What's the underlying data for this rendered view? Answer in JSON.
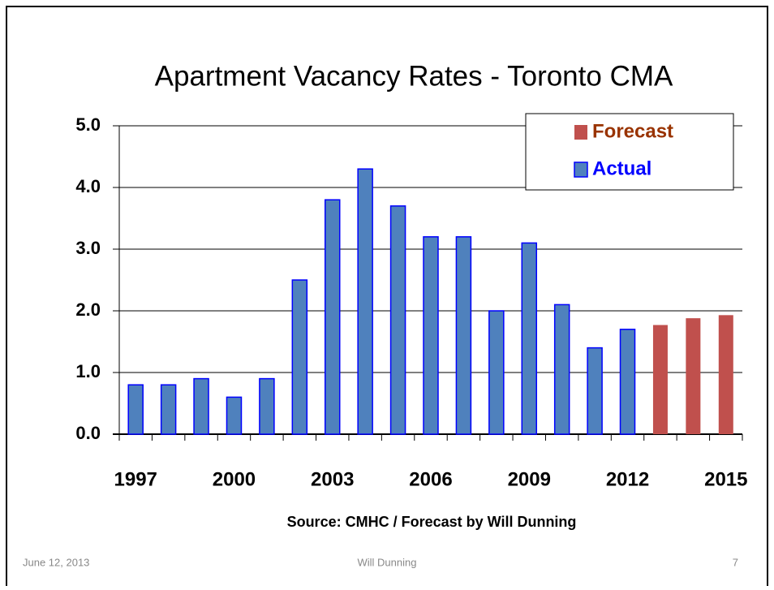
{
  "chart_data": {
    "type": "bar",
    "title": "Apartment Vacancy Rates - Toronto CMA",
    "source": "Source:  CMHC / Forecast by Will Dunning",
    "categories": [
      "1997",
      null,
      null,
      "2000",
      null,
      null,
      "2003",
      null,
      null,
      "2006",
      null,
      null,
      "2009",
      null,
      null,
      "2012",
      null,
      null,
      "2015"
    ],
    "series": [
      {
        "name": "Forecast",
        "color": "#c0504d",
        "text_color": "#993300",
        "values": [
          null,
          null,
          null,
          null,
          null,
          null,
          null,
          null,
          null,
          null,
          null,
          null,
          null,
          null,
          null,
          null,
          1.77,
          1.88,
          1.93
        ]
      },
      {
        "name": "Actual",
        "color": "#4f81bd",
        "stroke": "#0000ff",
        "text_color": "#0000ff",
        "values": [
          0.8,
          0.8,
          0.9,
          0.6,
          0.9,
          2.5,
          3.8,
          4.3,
          3.7,
          3.2,
          3.2,
          2.0,
          3.1,
          2.1,
          1.4,
          1.7,
          null,
          null,
          null
        ]
      }
    ],
    "ylim": [
      0,
      5
    ],
    "yticks": [
      {
        "value": 0,
        "label": "0.0"
      },
      {
        "value": 1,
        "label": "1.0"
      },
      {
        "value": 2,
        "label": "2.0"
      },
      {
        "value": 3,
        "label": "3.0"
      },
      {
        "value": 4,
        "label": "4.0"
      },
      {
        "value": 5,
        "label": "5.0"
      }
    ],
    "grid": true,
    "legend": "upper right"
  },
  "footer": {
    "date": "June 12, 2013",
    "author": "Will Dunning",
    "page": "7"
  }
}
